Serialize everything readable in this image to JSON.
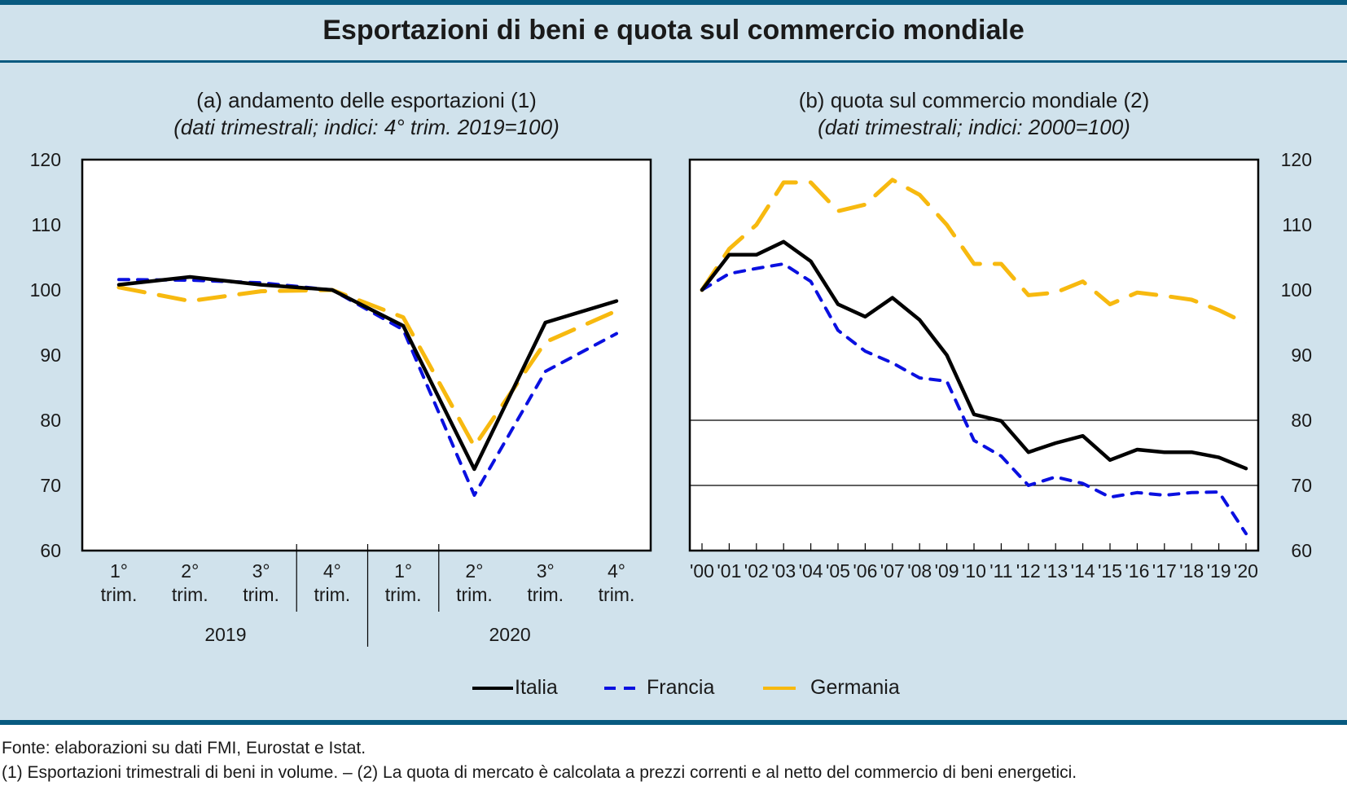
{
  "header": {
    "title": "Esportazioni di beni e quota sul commercio mondiale"
  },
  "legend": [
    {
      "name": "Italia",
      "color": "#000000",
      "style": "solid"
    },
    {
      "name": "Francia",
      "color": "#0a10e0",
      "style": "short-dash"
    },
    {
      "name": "Germania",
      "color": "#f7b90f",
      "style": "long-dash"
    }
  ],
  "footer": {
    "source": "Fonte: elaborazioni su dati FMI, Eurostat e Istat.",
    "notes": "(1) Esportazioni trimestrali di beni in volume. – (2) La quota di mercato è calcolata a prezzi correnti e al netto del commercio di beni energetici."
  },
  "chart_data": [
    {
      "type": "line",
      "title": "(a) andamento delle esportazioni (1)",
      "subtitle": "(dati trimestrali; indici: 4° trim. 2019=100)",
      "axis_side": "left",
      "categories": [
        "1° trim.",
        "2° trim.",
        "3° trim.",
        "4° trim.",
        "1° trim.",
        "2° trim.",
        "3° trim.",
        "4° trim."
      ],
      "category_lines": [
        [
          "1°",
          "trim."
        ],
        [
          "2°",
          "trim."
        ],
        [
          "3°",
          "trim."
        ],
        [
          "4°",
          "trim."
        ],
        [
          "1°",
          "trim."
        ],
        [
          "2°",
          "trim."
        ],
        [
          "3°",
          "trim."
        ],
        [
          "4°",
          "trim."
        ]
      ],
      "year_groups": [
        {
          "label": "2019",
          "count": 4
        },
        {
          "label": "2020",
          "count": 4
        }
      ],
      "ylim": [
        60,
        120
      ],
      "yticks": [
        60,
        70,
        80,
        90,
        100,
        110,
        120
      ],
      "gridlines": [],
      "series": [
        {
          "name": "Italia",
          "values": [
            100.8,
            102.0,
            100.8,
            100.0,
            94.5,
            72.5,
            95.0,
            98.3
          ]
        },
        {
          "name": "Francia",
          "values": [
            101.6,
            101.5,
            101.1,
            100.0,
            93.9,
            68.5,
            87.5,
            93.3
          ]
        },
        {
          "name": "Germania",
          "values": [
            100.4,
            98.3,
            99.8,
            100.0,
            95.8,
            76.0,
            92.0,
            96.8
          ]
        }
      ]
    },
    {
      "type": "line",
      "title": "(b) quota sul commercio mondiale (2)",
      "subtitle": "(dati trimestrali; indici: 2000=100)",
      "axis_side": "right",
      "categories": [
        "'00",
        "'01",
        "'02",
        "'03",
        "'04",
        "'05",
        "'06",
        "'07",
        "'08",
        "'09",
        "'10",
        "'11",
        "'12",
        "'13",
        "'14",
        "'15",
        "'16",
        "'17",
        "'18",
        "'19",
        "'20"
      ],
      "ylim": [
        60,
        120
      ],
      "yticks": [
        60,
        70,
        80,
        90,
        100,
        110,
        120
      ],
      "gridlines": [
        70,
        80
      ],
      "series": [
        {
          "name": "Italia",
          "values": [
            100,
            105.4,
            105.4,
            107.4,
            104.4,
            97.8,
            95.9,
            98.8,
            95.4,
            90.0,
            80.9,
            79.9,
            75.1,
            76.5,
            77.6,
            73.9,
            75.5,
            75.1,
            75.1,
            74.3,
            72.6
          ]
        },
        {
          "name": "Francia",
          "values": [
            100,
            102.5,
            103.3,
            104.0,
            101.3,
            93.8,
            90.6,
            88.8,
            86.5,
            86.0,
            76.9,
            74.5,
            70.0,
            71.3,
            70.3,
            68.2,
            68.9,
            68.5,
            68.9,
            69.0,
            62.6
          ]
        },
        {
          "name": "Germania",
          "values": [
            100,
            106.3,
            110.0,
            116.5,
            116.5,
            112.1,
            113.1,
            116.9,
            114.6,
            110.0,
            104.0,
            104.0,
            99.2,
            99.6,
            101.3,
            97.8,
            99.6,
            99.1,
            98.5,
            96.9,
            94.9
          ]
        }
      ]
    }
  ]
}
